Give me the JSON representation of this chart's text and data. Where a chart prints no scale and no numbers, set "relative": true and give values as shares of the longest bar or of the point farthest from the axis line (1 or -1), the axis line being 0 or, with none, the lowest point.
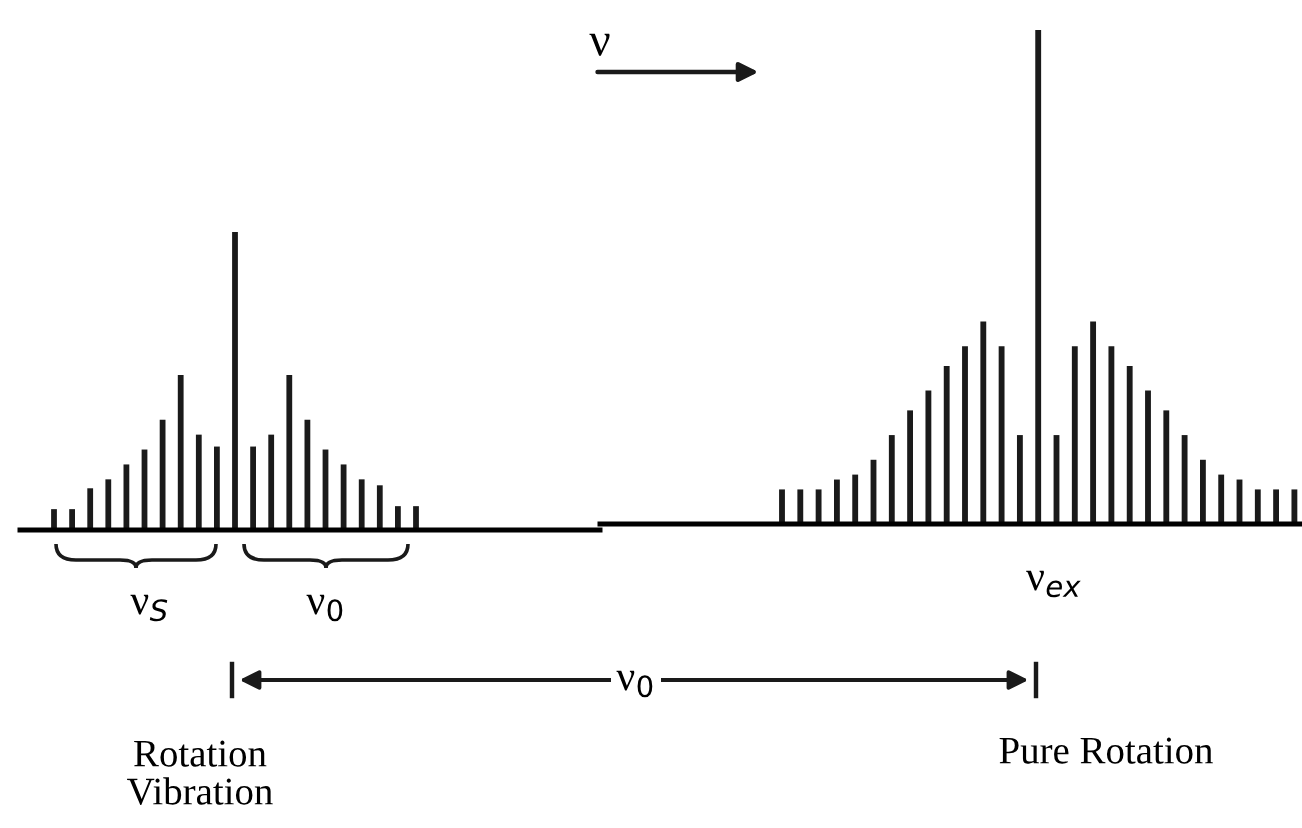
{
  "chart_data": [
    {
      "type": "bar",
      "relative": true,
      "color": "#1a1a1a",
      "categories": [
        null,
        null,
        null,
        null,
        null,
        null,
        null,
        null,
        null,
        null,
        null,
        null,
        null,
        null,
        null,
        null,
        null,
        null,
        null,
        null,
        null
      ],
      "values": [
        0.07,
        0.07,
        0.14,
        0.17,
        0.22,
        0.27,
        0.37,
        0.52,
        0.32,
        0.28,
        1,
        0.28,
        0.32,
        0.52,
        0.37,
        0.27,
        0.22,
        0.17,
        0.15,
        0.08,
        0.08
      ],
      "annotations": [
        "ν$_{S}$",
        "ν$_{0}$",
        "Rotation\nVibration"
      ]
    },
    {
      "type": "bar",
      "relative": true,
      "color": "#1a1a1a",
      "categories": [
        null,
        null,
        null,
        null,
        null,
        null,
        null,
        null,
        null,
        null,
        null,
        null,
        null,
        null,
        null,
        null,
        null,
        null,
        null,
        null,
        null,
        null,
        null,
        null,
        null,
        null,
        null,
        null,
        null
      ],
      "values": [
        0.07,
        0.07,
        0.07,
        0.09,
        0.1,
        0.13,
        0.18,
        0.23,
        0.27,
        0.32,
        0.36,
        0.41,
        0.36,
        0.18,
        1,
        0.18,
        0.36,
        0.41,
        0.36,
        0.32,
        0.27,
        0.23,
        0.18,
        0.13,
        0.1,
        0.09,
        0.07,
        0.07,
        0.07
      ],
      "annotations": [
        "ν",
        "ν$_{ex}$",
        "ν$_{0}$",
        "Pure Rotation"
      ]
    }
  ]
}
